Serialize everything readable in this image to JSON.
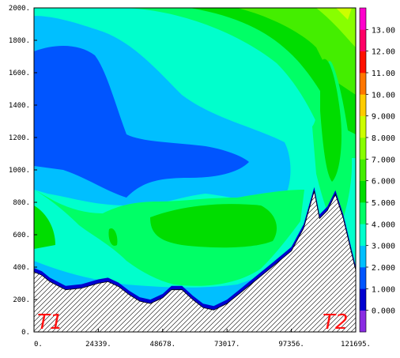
{
  "chart_data": {
    "type": "heatmap",
    "title": "",
    "xlabel": "",
    "ylabel": "",
    "xlim": [
      0,
      121695
    ],
    "ylim": [
      0,
      2000
    ],
    "x_tick_labels": [
      "0.",
      "24339.",
      "48678.",
      "73017.",
      "97356.",
      "121695."
    ],
    "y_tick_labels": [
      "0.",
      "200.",
      "400.",
      "600.",
      "800.",
      "1000.",
      "1200.",
      "1400.",
      "1600.",
      "1800.",
      "2000."
    ],
    "x_ticks": [
      0,
      24339,
      48678,
      73017,
      97356,
      121695
    ],
    "y_ticks": [
      0,
      200,
      400,
      600,
      800,
      1000,
      1200,
      1400,
      1600,
      1800,
      2000
    ],
    "colorbar": {
      "labels": [
        "0.000",
        "1.000",
        "2.000",
        "3.000",
        "4.000",
        "5.000",
        "6.000",
        "7.000",
        "8.000",
        "9.000",
        "10.00",
        "11.00",
        "12.00",
        "13.00"
      ],
      "levels": [
        -1,
        0,
        1,
        2,
        3,
        4,
        5,
        6,
        7,
        8,
        9,
        10,
        11,
        12,
        13,
        14
      ],
      "colors": [
        "#8a2be2",
        "#0000d0",
        "#0055ff",
        "#00bfff",
        "#00ffcc",
        "#00ff66",
        "#00dd00",
        "#44ee00",
        "#88ff00",
        "#ccff00",
        "#ffcc00",
        "#ff7700",
        "#ff1100",
        "#ff0066",
        "#ff00cc"
      ]
    },
    "terrain": {
      "x": [
        0,
        3000,
        6000,
        12000,
        18000,
        24339,
        28000,
        32000,
        36000,
        40000,
        44000,
        48678,
        52000,
        56000,
        60000,
        64000,
        68000,
        73017,
        78000,
        84000,
        90000,
        97356,
        102000,
        106000,
        108000,
        111000,
        114000,
        117000,
        121695
      ],
      "y": [
        370,
        350,
        310,
        260,
        270,
        300,
        310,
        280,
        230,
        190,
        175,
        210,
        260,
        260,
        200,
        150,
        135,
        175,
        240,
        320,
        400,
        500,
        640,
        870,
        700,
        750,
        850,
        700,
        380
      ],
      "hatch": true
    },
    "annotations": [
      "T1",
      "T2"
    ]
  }
}
